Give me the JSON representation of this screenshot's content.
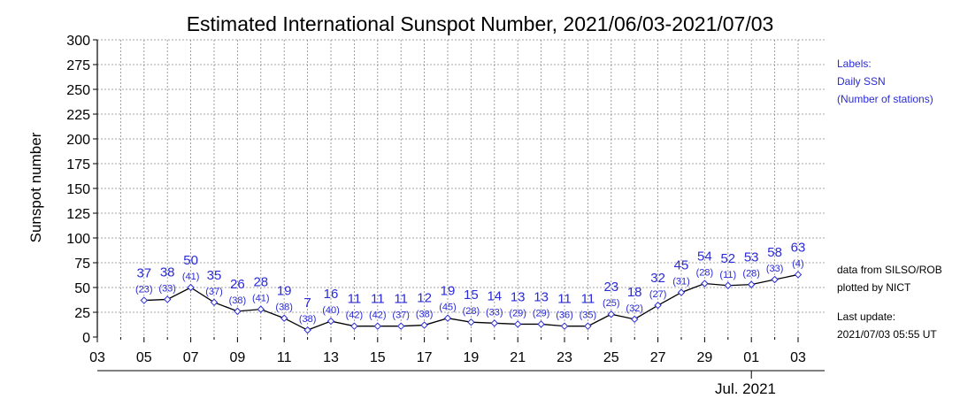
{
  "chart_data": {
    "type": "line",
    "title": "Estimated International Sunspot Number, 2021/06/03-2021/07/03",
    "ylabel": "Sunspot number",
    "ylim": [
      0,
      300
    ],
    "yticks": [
      0,
      25,
      50,
      75,
      100,
      125,
      150,
      175,
      200,
      225,
      250,
      275,
      300
    ],
    "grid": true,
    "x": [
      "2021-06-05",
      "2021-06-06",
      "2021-06-07",
      "2021-06-08",
      "2021-06-09",
      "2021-06-10",
      "2021-06-11",
      "2021-06-12",
      "2021-06-13",
      "2021-06-14",
      "2021-06-15",
      "2021-06-16",
      "2021-06-17",
      "2021-06-18",
      "2021-06-19",
      "2021-06-20",
      "2021-06-21",
      "2021-06-22",
      "2021-06-23",
      "2021-06-24",
      "2021-06-25",
      "2021-06-26",
      "2021-06-27",
      "2021-06-28",
      "2021-06-29",
      "2021-06-30",
      "2021-07-01",
      "2021-07-02",
      "2021-07-03"
    ],
    "values": [
      37,
      38,
      50,
      35,
      26,
      28,
      19,
      7,
      16,
      11,
      11,
      11,
      12,
      19,
      15,
      14,
      13,
      13,
      11,
      11,
      23,
      18,
      32,
      45,
      54,
      52,
      53,
      58,
      63
    ],
    "stations": [
      23,
      33,
      41,
      37,
      38,
      41,
      38,
      38,
      40,
      42,
      42,
      37,
      38,
      45,
      28,
      33,
      29,
      29,
      36,
      35,
      25,
      32,
      27,
      31,
      28,
      11,
      28,
      33,
      4
    ],
    "xtick_labels": [
      "03",
      "05",
      "07",
      "09",
      "11",
      "13",
      "15",
      "17",
      "19",
      "21",
      "23",
      "25",
      "27",
      "29",
      "01",
      "03"
    ],
    "month_label": "Jul. 2021"
  },
  "legend": {
    "line1": "Labels:",
    "line2": "Daily SSN",
    "line3": "(Number of stations)"
  },
  "credits": {
    "line1": "data from SILSO/ROB",
    "line2": "plotted by NICT",
    "line3": "Last update:",
    "line4": "2021/07/03 05:55 UT"
  },
  "colors": {
    "labels": "#2a2ad8",
    "line": "#000000",
    "marker": "#2a2ad8"
  }
}
